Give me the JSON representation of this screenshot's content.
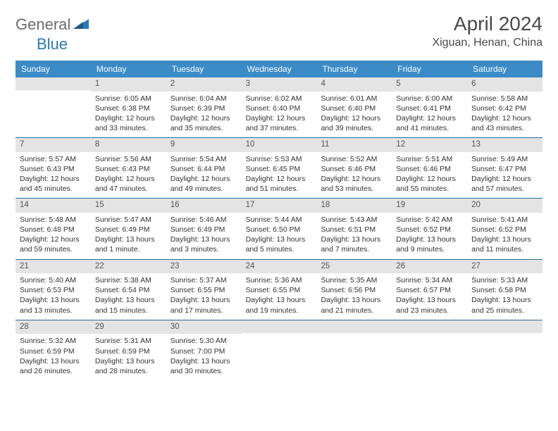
{
  "logo": {
    "general": "General",
    "blue": "Blue"
  },
  "title": "April 2024",
  "location": "Xiguan, Henan, China",
  "colors": {
    "header_bg": "#3b8bc7",
    "header_text": "#ffffff",
    "daynum_bg": "#e4e4e4",
    "daynum_text": "#555555",
    "body_text": "#333333",
    "rule": "#2a6a9a",
    "logo_gray": "#6b6b6b",
    "logo_blue": "#2a7ab7"
  },
  "day_headers": [
    "Sunday",
    "Monday",
    "Tuesday",
    "Wednesday",
    "Thursday",
    "Friday",
    "Saturday"
  ],
  "weeks": [
    [
      {
        "num": "",
        "sunrise": "",
        "sunset": "",
        "daylight": ""
      },
      {
        "num": "1",
        "sunrise": "Sunrise: 6:05 AM",
        "sunset": "Sunset: 6:38 PM",
        "daylight": "Daylight: 12 hours and 33 minutes."
      },
      {
        "num": "2",
        "sunrise": "Sunrise: 6:04 AM",
        "sunset": "Sunset: 6:39 PM",
        "daylight": "Daylight: 12 hours and 35 minutes."
      },
      {
        "num": "3",
        "sunrise": "Sunrise: 6:02 AM",
        "sunset": "Sunset: 6:40 PM",
        "daylight": "Daylight: 12 hours and 37 minutes."
      },
      {
        "num": "4",
        "sunrise": "Sunrise: 6:01 AM",
        "sunset": "Sunset: 6:40 PM",
        "daylight": "Daylight: 12 hours and 39 minutes."
      },
      {
        "num": "5",
        "sunrise": "Sunrise: 6:00 AM",
        "sunset": "Sunset: 6:41 PM",
        "daylight": "Daylight: 12 hours and 41 minutes."
      },
      {
        "num": "6",
        "sunrise": "Sunrise: 5:58 AM",
        "sunset": "Sunset: 6:42 PM",
        "daylight": "Daylight: 12 hours and 43 minutes."
      }
    ],
    [
      {
        "num": "7",
        "sunrise": "Sunrise: 5:57 AM",
        "sunset": "Sunset: 6:43 PM",
        "daylight": "Daylight: 12 hours and 45 minutes."
      },
      {
        "num": "8",
        "sunrise": "Sunrise: 5:56 AM",
        "sunset": "Sunset: 6:43 PM",
        "daylight": "Daylight: 12 hours and 47 minutes."
      },
      {
        "num": "9",
        "sunrise": "Sunrise: 5:54 AM",
        "sunset": "Sunset: 6:44 PM",
        "daylight": "Daylight: 12 hours and 49 minutes."
      },
      {
        "num": "10",
        "sunrise": "Sunrise: 5:53 AM",
        "sunset": "Sunset: 6:45 PM",
        "daylight": "Daylight: 12 hours and 51 minutes."
      },
      {
        "num": "11",
        "sunrise": "Sunrise: 5:52 AM",
        "sunset": "Sunset: 6:46 PM",
        "daylight": "Daylight: 12 hours and 53 minutes."
      },
      {
        "num": "12",
        "sunrise": "Sunrise: 5:51 AM",
        "sunset": "Sunset: 6:46 PM",
        "daylight": "Daylight: 12 hours and 55 minutes."
      },
      {
        "num": "13",
        "sunrise": "Sunrise: 5:49 AM",
        "sunset": "Sunset: 6:47 PM",
        "daylight": "Daylight: 12 hours and 57 minutes."
      }
    ],
    [
      {
        "num": "14",
        "sunrise": "Sunrise: 5:48 AM",
        "sunset": "Sunset: 6:48 PM",
        "daylight": "Daylight: 12 hours and 59 minutes."
      },
      {
        "num": "15",
        "sunrise": "Sunrise: 5:47 AM",
        "sunset": "Sunset: 6:49 PM",
        "daylight": "Daylight: 13 hours and 1 minute."
      },
      {
        "num": "16",
        "sunrise": "Sunrise: 5:46 AM",
        "sunset": "Sunset: 6:49 PM",
        "daylight": "Daylight: 13 hours and 3 minutes."
      },
      {
        "num": "17",
        "sunrise": "Sunrise: 5:44 AM",
        "sunset": "Sunset: 6:50 PM",
        "daylight": "Daylight: 13 hours and 5 minutes."
      },
      {
        "num": "18",
        "sunrise": "Sunrise: 5:43 AM",
        "sunset": "Sunset: 6:51 PM",
        "daylight": "Daylight: 13 hours and 7 minutes."
      },
      {
        "num": "19",
        "sunrise": "Sunrise: 5:42 AM",
        "sunset": "Sunset: 6:52 PM",
        "daylight": "Daylight: 13 hours and 9 minutes."
      },
      {
        "num": "20",
        "sunrise": "Sunrise: 5:41 AM",
        "sunset": "Sunset: 6:52 PM",
        "daylight": "Daylight: 13 hours and 11 minutes."
      }
    ],
    [
      {
        "num": "21",
        "sunrise": "Sunrise: 5:40 AM",
        "sunset": "Sunset: 6:53 PM",
        "daylight": "Daylight: 13 hours and 13 minutes."
      },
      {
        "num": "22",
        "sunrise": "Sunrise: 5:38 AM",
        "sunset": "Sunset: 6:54 PM",
        "daylight": "Daylight: 13 hours and 15 minutes."
      },
      {
        "num": "23",
        "sunrise": "Sunrise: 5:37 AM",
        "sunset": "Sunset: 6:55 PM",
        "daylight": "Daylight: 13 hours and 17 minutes."
      },
      {
        "num": "24",
        "sunrise": "Sunrise: 5:36 AM",
        "sunset": "Sunset: 6:55 PM",
        "daylight": "Daylight: 13 hours and 19 minutes."
      },
      {
        "num": "25",
        "sunrise": "Sunrise: 5:35 AM",
        "sunset": "Sunset: 6:56 PM",
        "daylight": "Daylight: 13 hours and 21 minutes."
      },
      {
        "num": "26",
        "sunrise": "Sunrise: 5:34 AM",
        "sunset": "Sunset: 6:57 PM",
        "daylight": "Daylight: 13 hours and 23 minutes."
      },
      {
        "num": "27",
        "sunrise": "Sunrise: 5:33 AM",
        "sunset": "Sunset: 6:58 PM",
        "daylight": "Daylight: 13 hours and 25 minutes."
      }
    ],
    [
      {
        "num": "28",
        "sunrise": "Sunrise: 5:32 AM",
        "sunset": "Sunset: 6:59 PM",
        "daylight": "Daylight: 13 hours and 26 minutes."
      },
      {
        "num": "29",
        "sunrise": "Sunrise: 5:31 AM",
        "sunset": "Sunset: 6:59 PM",
        "daylight": "Daylight: 13 hours and 28 minutes."
      },
      {
        "num": "30",
        "sunrise": "Sunrise: 5:30 AM",
        "sunset": "Sunset: 7:00 PM",
        "daylight": "Daylight: 13 hours and 30 minutes."
      },
      {
        "num": "",
        "sunrise": "",
        "sunset": "",
        "daylight": ""
      },
      {
        "num": "",
        "sunrise": "",
        "sunset": "",
        "daylight": ""
      },
      {
        "num": "",
        "sunrise": "",
        "sunset": "",
        "daylight": ""
      },
      {
        "num": "",
        "sunrise": "",
        "sunset": "",
        "daylight": ""
      }
    ]
  ]
}
